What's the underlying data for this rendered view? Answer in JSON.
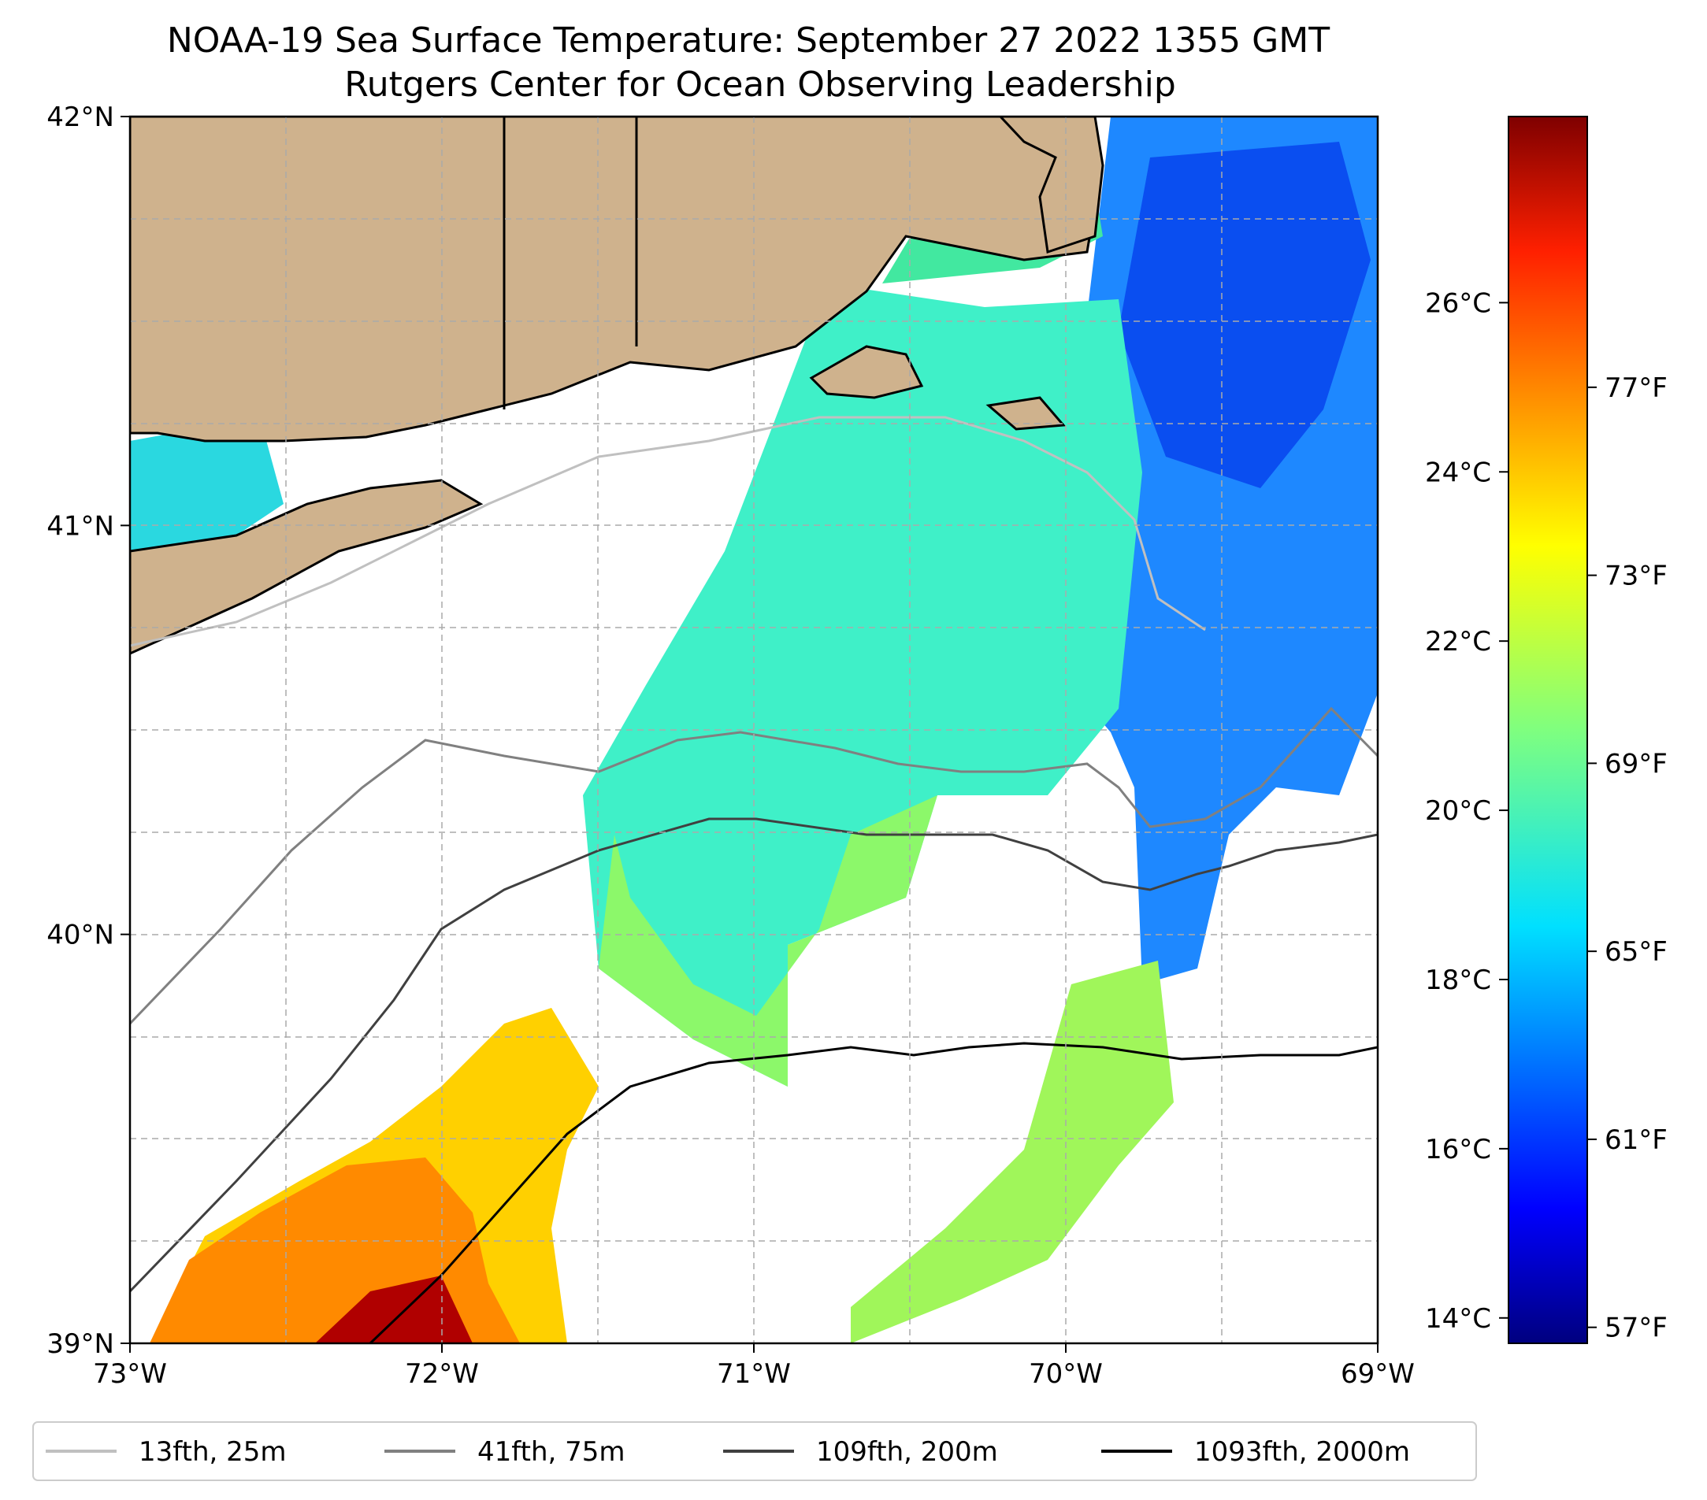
{
  "title_line1": "NOAA-19 Sea Surface Temperature: September 27 2022 1355 GMT",
  "title_line2": "Rutgers Center for Ocean Observing Leadership",
  "map": {
    "lon_range": [
      -73,
      -69
    ],
    "lat_range": [
      39,
      42
    ],
    "lon_ticks": [
      {
        "value": -73,
        "label": "73°W"
      },
      {
        "value": -72,
        "label": "72°W"
      },
      {
        "value": -71,
        "label": "71°W"
      },
      {
        "value": -70,
        "label": "70°W"
      },
      {
        "value": -69,
        "label": "69°W"
      }
    ],
    "lat_ticks": [
      {
        "value": 42,
        "label": "42°N"
      },
      {
        "value": 41,
        "label": "41°N"
      },
      {
        "value": 40,
        "label": "40°N"
      },
      {
        "value": 39,
        "label": "39°N"
      }
    ],
    "grid": true,
    "land_color": "#cfb28d",
    "coastline_color": "#000000"
  },
  "colorbar": {
    "colormap": "jet",
    "range_celsius": [
      13.7,
      28.2
    ],
    "celsius_ticks": [
      {
        "value": 26,
        "label": "26°C"
      },
      {
        "value": 24,
        "label": "24°C"
      },
      {
        "value": 22,
        "label": "22°C"
      },
      {
        "value": 20,
        "label": "20°C"
      },
      {
        "value": 18,
        "label": "18°C"
      },
      {
        "value": 16,
        "label": "16°C"
      },
      {
        "value": 14,
        "label": "14°C"
      }
    ],
    "fahrenheit_ticks": [
      {
        "value": 77,
        "label": "77°F"
      },
      {
        "value": 73,
        "label": "73°F"
      },
      {
        "value": 69,
        "label": "69°F"
      },
      {
        "value": 65,
        "label": "65°F"
      },
      {
        "value": 61,
        "label": "61°F"
      },
      {
        "value": 57,
        "label": "57°F"
      }
    ]
  },
  "legend": {
    "placement": "bottom",
    "entries": [
      {
        "label": "13fth, 25m",
        "color": "#c0c0c0"
      },
      {
        "label": "41fth, 75m",
        "color": "#808080"
      },
      {
        "label": "109fth, 200m",
        "color": "#404040"
      },
      {
        "label": "1093fth, 2000m",
        "color": "#000000"
      }
    ]
  }
}
